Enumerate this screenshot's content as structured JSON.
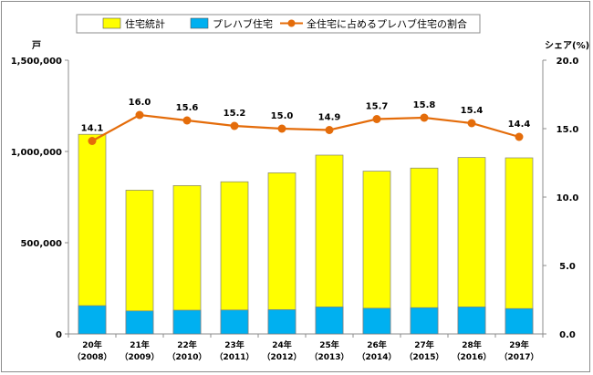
{
  "chart_data": {
    "type": "bar+line",
    "categories": [
      {
        "top": "20年",
        "bottom": "（2008）"
      },
      {
        "top": "21年",
        "bottom": "（2009）"
      },
      {
        "top": "22年",
        "bottom": "（2010）"
      },
      {
        "top": "23年",
        "bottom": "（2011）"
      },
      {
        "top": "24年",
        "bottom": "（2012）"
      },
      {
        "top": "25年",
        "bottom": "（2013）"
      },
      {
        "top": "26年",
        "bottom": "（2014）"
      },
      {
        "top": "27年",
        "bottom": "（2015）"
      },
      {
        "top": "28年",
        "bottom": "（2016）"
      },
      {
        "top": "29年",
        "bottom": "（2017）"
      }
    ],
    "series": [
      {
        "name": "住宅統計",
        "kind": "bar",
        "color": "#ffff00",
        "values": [
          1094000,
          788000,
          813000,
          834000,
          883000,
          980000,
          892000,
          909000,
          967000,
          965000
        ]
      },
      {
        "name": "プレハブ住宅",
        "kind": "bar",
        "color": "#00b0f0",
        "values": [
          155000,
          126000,
          130000,
          131000,
          133000,
          148000,
          141000,
          144000,
          148000,
          139000
        ]
      },
      {
        "name": "全住宅に占めるプレハブ住宅の割合",
        "kind": "line",
        "axis": "right",
        "color": "#e46c0a",
        "values": [
          14.1,
          16.0,
          15.6,
          15.2,
          15.0,
          14.9,
          15.7,
          15.8,
          15.4,
          14.4
        ],
        "labels": [
          "14.1",
          "16.0",
          "15.6",
          "15.2",
          "15.0",
          "14.9",
          "15.7",
          "15.8",
          "15.4",
          "14.4"
        ]
      }
    ],
    "y_left": {
      "unit": "戸",
      "ylim": [
        0,
        1500000
      ],
      "ticks": [
        "0",
        "500,000",
        "1,000,000",
        "1,500,000"
      ],
      "tick_values": [
        0,
        500000,
        1000000,
        1500000
      ]
    },
    "y_right": {
      "unit": "シェア(%)",
      "ylim": [
        0,
        20
      ],
      "ticks": [
        "0.0",
        "5.0",
        "10.0",
        "15.0",
        "20.0"
      ],
      "tick_values": [
        0,
        5,
        10,
        15,
        20
      ]
    },
    "grid": false,
    "legend_position": "top"
  }
}
